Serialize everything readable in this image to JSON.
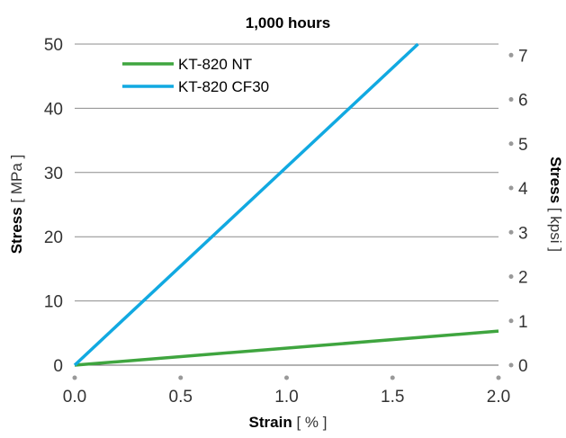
{
  "chart_data": {
    "type": "line",
    "title": "1,000 hours",
    "xlabel": {
      "bold": "Strain",
      "unit": "[ % ]"
    },
    "ylabel": {
      "bold": "Stress",
      "unit": "[ MPa ]"
    },
    "y2label": {
      "bold": "Stress",
      "unit": "[ kpsi ]"
    },
    "xlim": [
      0,
      2.0
    ],
    "ylim": [
      0,
      50
    ],
    "y2lim": [
      0,
      7.25
    ],
    "xticks": [
      "0.0",
      "0.5",
      "1.0",
      "1.5",
      "2.0"
    ],
    "yticks": [
      "0",
      "10",
      "20",
      "30",
      "40",
      "50"
    ],
    "y2ticks": [
      "0",
      "1",
      "2",
      "3",
      "4",
      "5",
      "6",
      "7"
    ],
    "grid": "horizontal",
    "legend_position": "top-left",
    "series": [
      {
        "name": "KT-820 NT",
        "color": "#3fa53f",
        "x": [
          0,
          2.0
        ],
        "y": [
          0,
          5.3
        ]
      },
      {
        "name": "KT-820 CF30",
        "color": "#11a9e1",
        "x": [
          0,
          1.62
        ],
        "y": [
          0,
          50
        ]
      }
    ]
  }
}
